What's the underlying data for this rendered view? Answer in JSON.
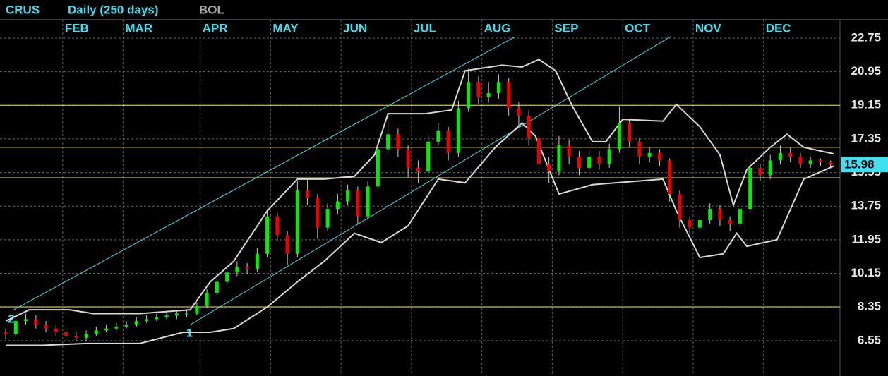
{
  "chart_data": {
    "type": "candlestick",
    "title": "CRUS",
    "subtitle": "Daily (250 days)",
    "indicator": "BOL",
    "x": [
      0,
      3,
      6,
      9,
      12,
      15,
      18,
      21,
      24,
      27,
      30,
      33,
      36,
      39,
      42,
      45,
      48,
      51,
      54,
      57,
      60,
      63,
      66,
      69,
      72,
      75,
      78,
      81,
      84,
      87,
      90,
      93,
      96,
      99,
      102,
      105,
      108,
      111,
      114,
      117,
      120,
      123,
      126,
      129,
      132,
      135,
      138,
      141,
      144,
      147,
      150,
      153,
      156,
      159,
      162,
      165,
      168,
      171,
      174,
      177,
      180,
      183,
      186,
      189,
      192,
      195,
      198,
      201,
      204,
      207,
      210,
      213,
      216,
      219,
      222,
      225,
      228,
      231,
      234,
      237,
      240,
      243,
      246
    ],
    "open": [
      7.0,
      6.9,
      7.6,
      7.7,
      7.4,
      7.2,
      7.0,
      6.8,
      6.7,
      6.9,
      7.1,
      7.2,
      7.3,
      7.4,
      7.6,
      7.7,
      7.8,
      7.9,
      8.0,
      8.0,
      8.4,
      9.1,
      9.7,
      10.2,
      10.5,
      10.4,
      11.2,
      13.2,
      12.2,
      11.2,
      14.6,
      14.2,
      12.6,
      13.6,
      14.0,
      14.6,
      13.2,
      14.8,
      16.8,
      17.6,
      16.8,
      15.8,
      15.6,
      17.2,
      17.8,
      16.6,
      19.0,
      20.4,
      19.6,
      19.8,
      20.4,
      19.0,
      18.6,
      17.4,
      16.0,
      15.6,
      17.0,
      16.4,
      15.8,
      16.4,
      16.0,
      16.8,
      18.2,
      17.2,
      16.4,
      16.6,
      16.2,
      14.4,
      13.0,
      12.6,
      13.0,
      13.6,
      13.0,
      12.8,
      13.6,
      15.8,
      15.4,
      16.2,
      16.6,
      16.4,
      16.0,
      16.2,
      16.1
    ],
    "high": [
      7.2,
      7.9,
      8.0,
      7.9,
      7.6,
      7.4,
      7.2,
      7.0,
      7.1,
      7.3,
      7.4,
      7.5,
      7.6,
      7.8,
      7.9,
      8.0,
      8.1,
      8.2,
      8.2,
      8.6,
      9.3,
      9.9,
      10.5,
      10.8,
      10.7,
      11.5,
      13.6,
      13.4,
      12.4,
      15.1,
      15.2,
      14.4,
      13.9,
      14.4,
      14.9,
      14.8,
      15.1,
      17.2,
      18.7,
      17.9,
      17.0,
      16.2,
      17.6,
      18.2,
      18.0,
      19.4,
      21.1,
      20.7,
      20.4,
      20.8,
      20.6,
      19.3,
      18.9,
      17.6,
      16.4,
      17.5,
      17.3,
      16.7,
      16.8,
      16.7,
      17.1,
      19.1,
      18.4,
      17.4,
      16.9,
      16.8,
      16.3,
      14.6,
      13.2,
      13.3,
      13.9,
      13.8,
      13.2,
      13.9,
      16.1,
      16.0,
      16.5,
      17.0,
      16.9,
      16.6,
      16.4,
      16.3,
      16.2
    ],
    "low": [
      6.6,
      6.8,
      7.4,
      7.2,
      7.0,
      6.8,
      6.6,
      6.5,
      6.5,
      6.8,
      7.0,
      7.1,
      7.2,
      7.3,
      7.5,
      7.6,
      7.7,
      7.7,
      7.8,
      7.9,
      8.3,
      9.0,
      9.6,
      10.0,
      10.1,
      10.2,
      11.0,
      11.9,
      10.6,
      11.0,
      13.8,
      12.0,
      12.4,
      13.3,
      13.8,
      12.8,
      13.0,
      14.6,
      16.5,
      16.4,
      15.3,
      15.0,
      15.4,
      17.0,
      16.2,
      16.4,
      18.8,
      19.2,
      19.3,
      19.5,
      18.6,
      18.0,
      17.0,
      15.6,
      15.0,
      15.4,
      16.0,
      15.4,
      15.6,
      15.7,
      15.8,
      16.6,
      16.9,
      16.0,
      16.1,
      15.9,
      14.0,
      12.6,
      12.3,
      12.4,
      12.8,
      12.7,
      12.4,
      12.6,
      13.4,
      15.1,
      15.2,
      16.0,
      16.1,
      15.8,
      15.8,
      15.9,
      15.8
    ],
    "close": [
      6.9,
      7.6,
      7.7,
      7.4,
      7.2,
      7.0,
      6.8,
      6.7,
      6.9,
      7.1,
      7.2,
      7.3,
      7.4,
      7.6,
      7.7,
      7.8,
      7.9,
      8.0,
      8.0,
      8.4,
      9.1,
      9.7,
      10.2,
      10.5,
      10.4,
      11.2,
      13.2,
      12.2,
      11.2,
      14.6,
      14.2,
      12.6,
      13.6,
      14.0,
      14.6,
      13.2,
      14.8,
      16.8,
      17.6,
      16.8,
      15.8,
      15.6,
      17.2,
      17.8,
      16.6,
      19.0,
      20.4,
      19.6,
      19.8,
      20.4,
      19.0,
      18.6,
      17.4,
      16.0,
      15.6,
      17.0,
      16.4,
      15.8,
      16.4,
      16.0,
      16.8,
      18.2,
      17.2,
      16.4,
      16.6,
      16.2,
      14.4,
      13.0,
      12.6,
      13.0,
      13.6,
      13.0,
      12.8,
      13.6,
      15.8,
      15.4,
      16.2,
      16.6,
      16.4,
      16.0,
      16.2,
      16.1,
      15.98
    ],
    "colors": {
      "up": "#00ee00",
      "down": "#ee0000"
    },
    "xlim": [
      -1.7,
      248.8
    ],
    "ylim": [
      4.77,
      23.73
    ],
    "xticks": [
      {
        "value": 17,
        "label": "FEB"
      },
      {
        "value": 35,
        "label": "MAR"
      },
      {
        "value": 58,
        "label": "APR"
      },
      {
        "value": 79,
        "label": "MAY"
      },
      {
        "value": 100,
        "label": "JUN"
      },
      {
        "value": 121,
        "label": "JUL"
      },
      {
        "value": 142,
        "label": "AUG"
      },
      {
        "value": 163,
        "label": "SEP"
      },
      {
        "value": 184,
        "label": "OCT"
      },
      {
        "value": 205,
        "label": "NOV"
      },
      {
        "value": 226,
        "label": "DEC"
      }
    ],
    "yticks": [
      6.55,
      8.35,
      10.15,
      11.95,
      13.75,
      15.55,
      17.35,
      19.15,
      20.95,
      22.75
    ],
    "grid": true,
    "bands": [
      {
        "color": "#d8d8d8",
        "x": [
          0,
          7,
          19,
          26,
          40,
          55,
          61,
          68,
          78,
          87,
          95,
          104,
          110,
          114,
          125,
          133,
          137,
          148,
          154,
          159,
          164,
          169,
          175,
          179,
          184,
          196,
          200,
          207,
          213,
          217,
          221,
          228,
          233,
          238,
          247
        ],
        "values": [
          7.6,
          8.2,
          8.2,
          8.0,
          8.0,
          8.2,
          9.7,
          10.8,
          13.5,
          15.2,
          15.2,
          15.35,
          16.5,
          18.7,
          18.7,
          18.9,
          21.0,
          21.3,
          21.2,
          21.6,
          21.0,
          19.1,
          17.2,
          17.2,
          18.4,
          18.3,
          19.2,
          18.0,
          16.5,
          13.8,
          15.7,
          16.9,
          17.6,
          16.9,
          16.55
        ]
      },
      {
        "color": "#d8d8d8",
        "x": [
          0,
          11,
          24,
          40,
          53,
          61,
          68,
          78,
          87,
          95,
          104,
          112,
          120,
          129,
          137,
          146,
          154,
          158,
          165,
          175,
          196,
          200,
          207,
          214,
          218,
          221,
          230,
          238,
          247
        ],
        "values": [
          6.3,
          6.3,
          6.4,
          6.4,
          7.0,
          7.0,
          7.2,
          8.35,
          9.7,
          10.8,
          12.3,
          11.8,
          12.7,
          15.2,
          15.0,
          16.9,
          18.2,
          17.5,
          14.4,
          14.9,
          15.2,
          13.5,
          11.0,
          11.2,
          12.3,
          11.6,
          11.95,
          15.2,
          15.9
        ]
      }
    ],
    "hlines": {
      "color": "#e8e070",
      "values": [
        19.15,
        16.9,
        15.27,
        8.36
      ]
    },
    "trendlines": [
      {
        "label": "2",
        "color": "#40e0f0",
        "x": [
          2.1,
          152
        ],
        "y": [
          8.17,
          22.83
        ]
      },
      {
        "label": "1",
        "color": "#40e0f0",
        "x": [
          55.2,
          198.3
        ],
        "y": [
          7.42,
          22.83
        ]
      }
    ]
  }
}
